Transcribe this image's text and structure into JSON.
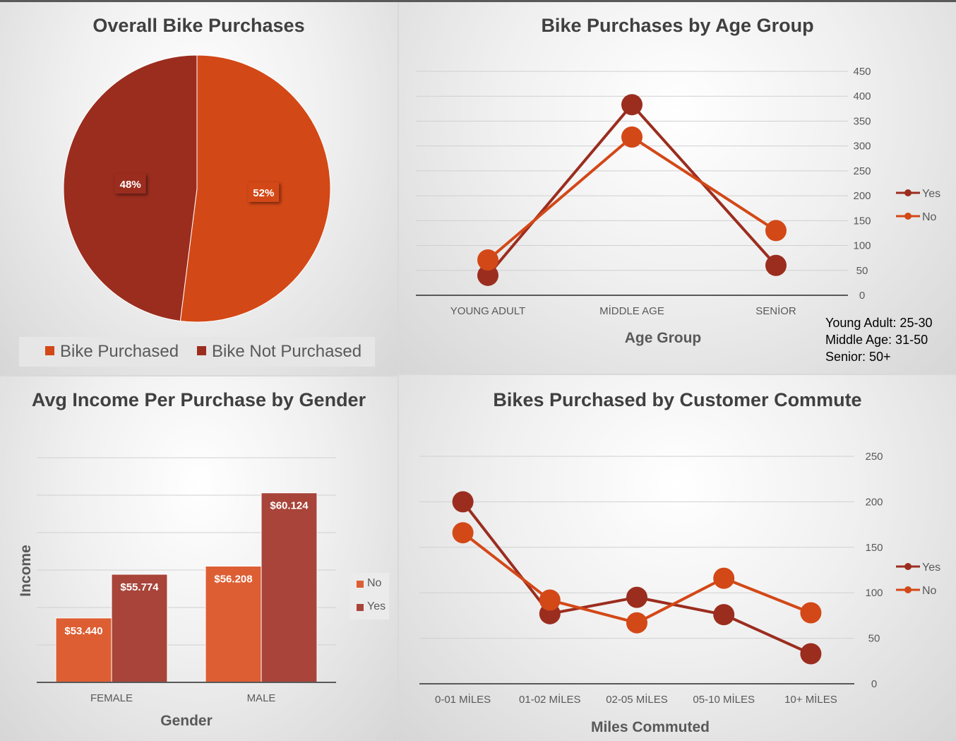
{
  "colors": {
    "orange": "#d34817",
    "darkred": "#9b2d1f",
    "barNo": "#dd5e33",
    "barYes": "#a84439",
    "grid": "#d0d0d0",
    "axis": "#595959"
  },
  "chart_data": [
    {
      "type": "pie",
      "title": "Overall Bike Purchases",
      "categories": [
        "Bike Purchased",
        "Bike Not Purchased"
      ],
      "values": [
        52,
        48
      ],
      "labels": [
        "52%",
        "48%"
      ],
      "legend": "bottom"
    },
    {
      "type": "line",
      "title": "Bike Purchases by Age Group",
      "xlabel": "Age Group",
      "categories": [
        "YOUNG ADULT",
        "MİDDLE AGE",
        "SENİOR"
      ],
      "series": [
        {
          "name": "Yes",
          "values": [
            40,
            383,
            60
          ]
        },
        {
          "name": "No",
          "values": [
            71,
            318,
            130
          ]
        }
      ],
      "ylim": [
        0,
        450
      ],
      "yticks": [
        "0",
        "50",
        "100",
        "150",
        "200",
        "250",
        "300",
        "350",
        "400",
        "450"
      ],
      "grid": true,
      "legend": "right",
      "note": [
        "Young Adult: 25-30",
        "Middle Age: 31-50",
        "Senior: 50+"
      ]
    },
    {
      "type": "bar",
      "title": "Avg Income Per Purchase by Gender",
      "xlabel": "Gender",
      "ylabel": "Income",
      "categories": [
        "FEMALE",
        "MALE"
      ],
      "series": [
        {
          "name": "No",
          "values": [
            53440,
            56208
          ],
          "labels": [
            "$53.440",
            "$56.208"
          ]
        },
        {
          "name": "Yes",
          "values": [
            55774,
            60124
          ],
          "labels": [
            "$55.774",
            "$60.124"
          ]
        }
      ],
      "ylim": [
        50000,
        62000
      ],
      "grid": true,
      "legend": "right"
    },
    {
      "type": "line",
      "title": "Bikes Purchased by Customer Commute",
      "xlabel": "Miles Commuted",
      "categories": [
        "0-01 MİLES",
        "01-02 MİLES",
        "02-05 MİLES",
        "05-10 MİLES",
        "10+ MİLES"
      ],
      "series": [
        {
          "name": "Yes",
          "values": [
            200,
            77,
            95,
            76,
            33
          ]
        },
        {
          "name": "No",
          "values": [
            166,
            92,
            67,
            116,
            78
          ]
        }
      ],
      "ylim": [
        0,
        250
      ],
      "yticks": [
        "0",
        "50",
        "100",
        "150",
        "200",
        "250"
      ],
      "grid": true,
      "legend": "right"
    }
  ]
}
